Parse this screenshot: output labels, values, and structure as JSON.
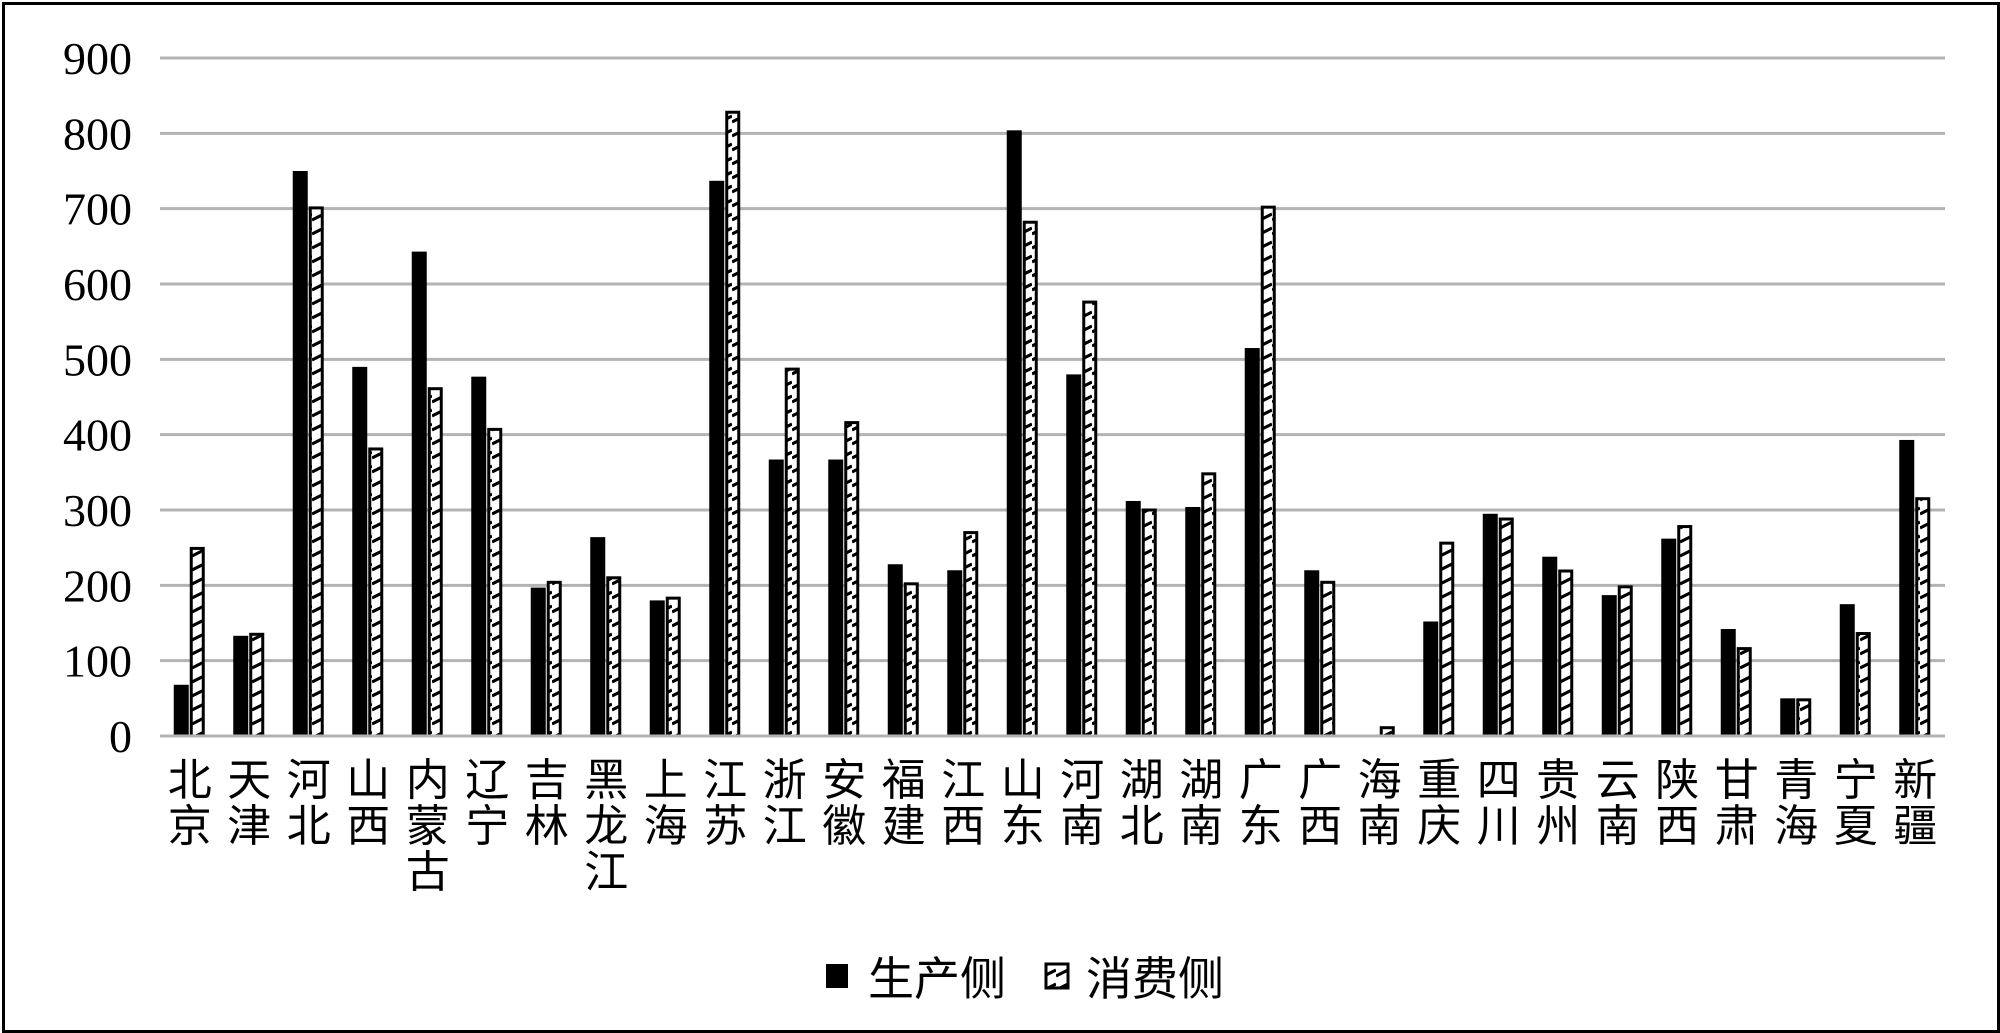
{
  "chart_data": {
    "type": "bar",
    "title": "",
    "xlabel": "",
    "ylabel": "",
    "ylim": [
      0,
      900
    ],
    "yticks": [
      0,
      100,
      200,
      300,
      400,
      500,
      600,
      700,
      800,
      900
    ],
    "grid": true,
    "legend_position": "bottom",
    "categories": [
      "北京",
      "天津",
      "河北",
      "山西",
      "内蒙古",
      "辽宁",
      "吉林",
      "黑龙江",
      "上海",
      "江苏",
      "浙江",
      "安徽",
      "福建",
      "江西",
      "山东",
      "河南",
      "湖北",
      "湖南",
      "广东",
      "广西",
      "海南",
      "重庆",
      "四川",
      "贵州",
      "云南",
      "陕西",
      "甘肃",
      "青海",
      "宁夏",
      "新疆"
    ],
    "series": [
      {
        "name": "生产侧",
        "style": "solid",
        "color": "#000000",
        "values": [
          68,
          133,
          750,
          490,
          643,
          477,
          197,
          264,
          180,
          737,
          367,
          367,
          228,
          220,
          804,
          480,
          312,
          304,
          515,
          220,
          0,
          152,
          295,
          238,
          187,
          262,
          142,
          50,
          175,
          393
        ]
      },
      {
        "name": "消费侧",
        "style": "hatched",
        "color": "#000000",
        "values": [
          251,
          137,
          703,
          383,
          463,
          409,
          206,
          212,
          185,
          830,
          489,
          418,
          204,
          272,
          684,
          578,
          302,
          350,
          704,
          206,
          13,
          258,
          290,
          221,
          200,
          280,
          118,
          50,
          138,
          317
        ]
      }
    ]
  }
}
